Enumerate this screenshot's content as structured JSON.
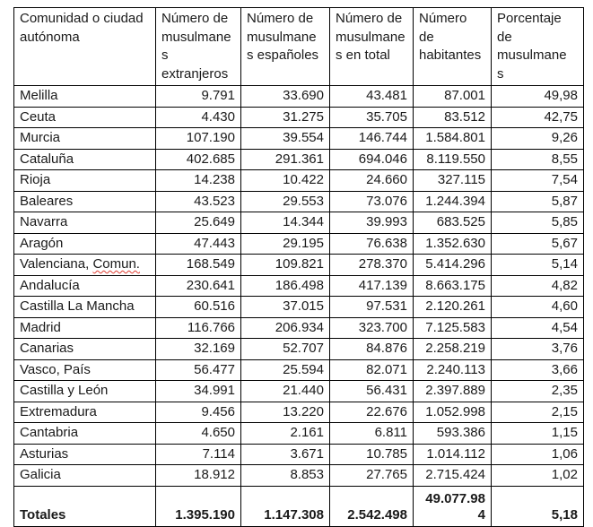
{
  "colors": {
    "border": "#000000",
    "text": "#1a1a1a",
    "background": "#ffffff",
    "spellcheck_underline": "#e03c31"
  },
  "table": {
    "columns": [
      {
        "key": "region",
        "header": "Comunidad o ciudad\nautónoma"
      },
      {
        "key": "extranjeros",
        "header": "Número de\nmusulmane\ns\nextranjeros"
      },
      {
        "key": "espanoles",
        "header": "Número de\nmusulmane\ns españoles"
      },
      {
        "key": "total",
        "header": "Número de\nmusulmane\ns en total"
      },
      {
        "key": "habitantes",
        "header": "Número\nde\nhabitantes"
      },
      {
        "key": "porcentaje",
        "header": "Porcentaje\nde\nmusulmane\ns"
      }
    ],
    "rows": [
      {
        "cells": [
          "Melilla",
          "9.791",
          "33.690",
          "43.481",
          "87.001",
          "49,98"
        ]
      },
      {
        "cells": [
          "Ceuta",
          "4.430",
          "31.275",
          "35.705",
          "83.512",
          "42,75"
        ]
      },
      {
        "cells": [
          "Murcia",
          "107.190",
          "39.554",
          "146.744",
          "1.584.801",
          "9,26"
        ]
      },
      {
        "cells": [
          "Cataluña",
          "402.685",
          "291.361",
          "694.046",
          "8.119.550",
          "8,55"
        ]
      },
      {
        "cells": [
          "Rioja",
          "14.238",
          "10.422",
          "24.660",
          "327.115",
          "7,54"
        ]
      },
      {
        "cells": [
          "Baleares",
          "43.523",
          "29.553",
          "73.076",
          "1.244.394",
          "5,87"
        ]
      },
      {
        "cells": [
          "Navarra",
          "25.649",
          "14.344",
          "39.993",
          "683.525",
          "5,85"
        ]
      },
      {
        "cells": [
          "Aragón",
          "47.443",
          "29.195",
          "76.638",
          "1.352.630",
          "5,67"
        ]
      },
      {
        "cells": [
          "Valenciana, Comun.",
          "168.549",
          "109.821",
          "278.370",
          "5.414.296",
          "5,14"
        ],
        "spellcheck_word": "Comun."
      },
      {
        "cells": [
          "Andalucía",
          "230.641",
          "186.498",
          "417.139",
          "8.663.175",
          "4,82"
        ]
      },
      {
        "cells": [
          "Castilla La Mancha",
          "60.516",
          "37.015",
          "97.531",
          "2.120.261",
          "4,60"
        ]
      },
      {
        "cells": [
          "Madrid",
          "116.766",
          "206.934",
          "323.700",
          "7.125.583",
          "4,54"
        ]
      },
      {
        "cells": [
          "Canarias",
          "32.169",
          "52.707",
          "84.876",
          "2.258.219",
          "3,76"
        ]
      },
      {
        "cells": [
          "Vasco, País",
          "56.477",
          "25.594",
          "82.071",
          "2.240.113",
          "3,66"
        ]
      },
      {
        "cells": [
          "Castilla y León",
          "34.991",
          "21.440",
          "56.431",
          "2.397.889",
          "2,35"
        ]
      },
      {
        "cells": [
          "Extremadura",
          "9.456",
          "13.220",
          "22.676",
          "1.052.998",
          "2,15"
        ]
      },
      {
        "cells": [
          "Cantabria",
          "4.650",
          "2.161",
          "6.811",
          "593.386",
          "1,15"
        ]
      },
      {
        "cells": [
          "Asturias",
          "7.114",
          "3.671",
          "10.785",
          "1.014.112",
          "1,06"
        ]
      },
      {
        "cells": [
          "Galicia",
          "18.912",
          "8.853",
          "27.765",
          "2.715.424",
          "1,02"
        ]
      }
    ],
    "totals_row": {
      "cells": [
        "Totales",
        "1.395.190",
        "1.147.308",
        "2.542.498",
        "49.077.984",
        "5,18"
      ]
    }
  }
}
